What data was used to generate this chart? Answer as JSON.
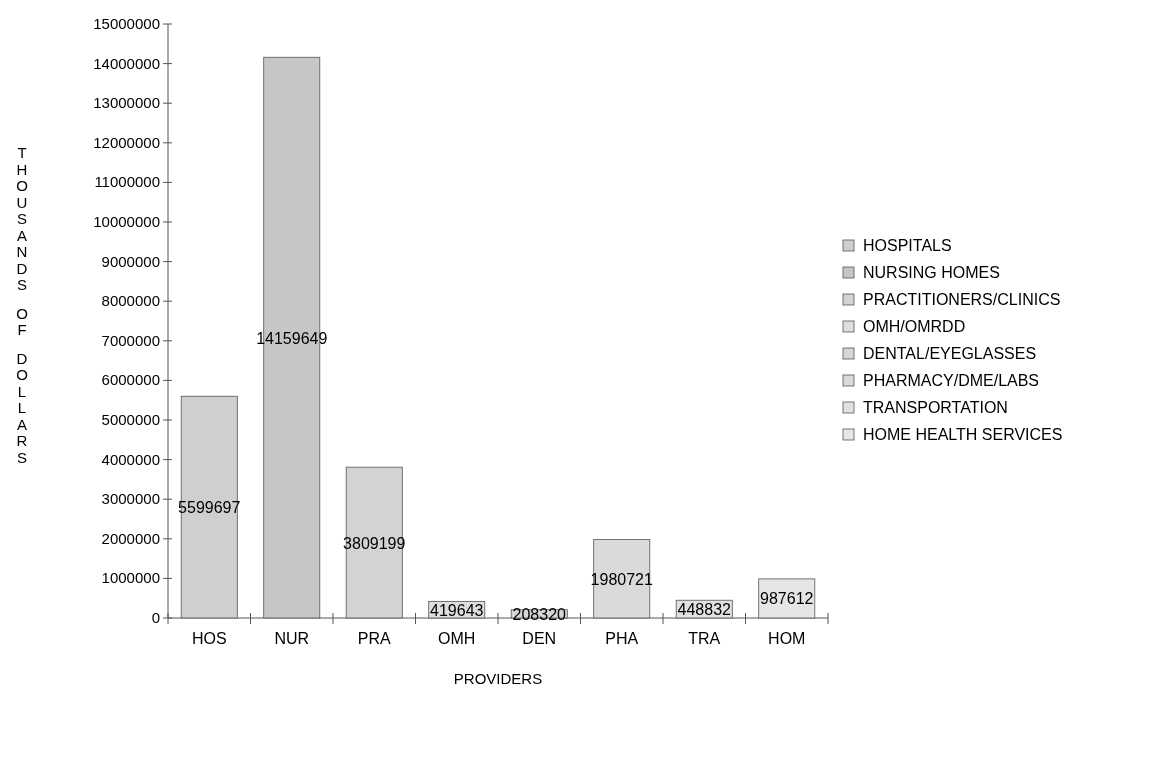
{
  "chart_data": {
    "type": "bar",
    "xlabel": "PROVIDERS",
    "ylabel": "THOUSANDS OF DOLLARS",
    "categories": [
      "HOS",
      "NUR",
      "PRA",
      "OMH",
      "DEN",
      "PHA",
      "TRA",
      "HOM"
    ],
    "series": [
      {
        "name": "HOSPITALS",
        "color": "#cfcfcf",
        "values": [
          5599697,
          null,
          null,
          null,
          null,
          null,
          null,
          null
        ]
      },
      {
        "name": "NURSING HOMES",
        "color": "#c6c6c6",
        "values": [
          null,
          14159649,
          null,
          null,
          null,
          null,
          null,
          null
        ]
      },
      {
        "name": "PRACTITIONERS/CLINICS",
        "color": "#d3d3d3",
        "values": [
          null,
          null,
          3809199,
          null,
          null,
          null,
          null,
          null
        ]
      },
      {
        "name": "OMH/OMRDD",
        "color": "#dedede",
        "values": [
          null,
          null,
          null,
          419643,
          null,
          null,
          null,
          null
        ]
      },
      {
        "name": "DENTAL/EYEGLASSES",
        "color": "#d6d6d6",
        "values": [
          null,
          null,
          null,
          null,
          208320,
          null,
          null,
          null
        ]
      },
      {
        "name": "PHARMACY/DME/LABS",
        "color": "#dadada",
        "values": [
          null,
          null,
          null,
          null,
          null,
          1980721,
          null,
          null
        ]
      },
      {
        "name": "TRANSPORTATION",
        "color": "#e1e1e1",
        "values": [
          null,
          null,
          null,
          null,
          null,
          null,
          448832,
          null
        ]
      },
      {
        "name": "HOME HEALTH SERVICES",
        "color": "#e6e6e6",
        "values": [
          null,
          null,
          null,
          null,
          null,
          null,
          null,
          987612
        ]
      }
    ],
    "ylim": [
      0,
      15000000
    ],
    "yticks": [
      0,
      1000000,
      2000000,
      3000000,
      4000000,
      5000000,
      6000000,
      7000000,
      8000000,
      9000000,
      10000000,
      11000000,
      12000000,
      13000000,
      14000000,
      15000000
    ],
    "data_labels": true,
    "legend": "right",
    "grid": false
  }
}
